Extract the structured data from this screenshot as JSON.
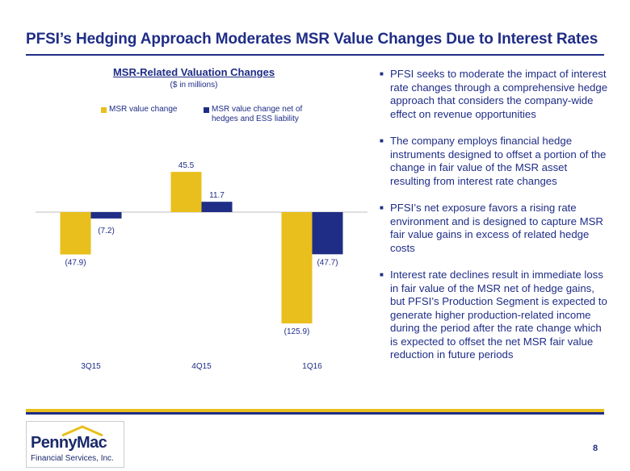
{
  "page": {
    "title": "PFSI’s Hedging Approach Moderates MSR Value Changes Due to Interest Rates",
    "page_number": "8"
  },
  "chart_data": {
    "type": "bar",
    "title": "MSR-Related Valuation Changes",
    "subtitle": "($ in millions)",
    "categories": [
      "3Q15",
      "4Q15",
      "1Q16"
    ],
    "series": [
      {
        "name": "MSR value change",
        "values": [
          -47.9,
          45.5,
          -125.9
        ],
        "labels": [
          "(47.9)",
          "45.5",
          "(125.9)"
        ],
        "color": "#e8bf1c"
      },
      {
        "name": "MSR value change net of hedges and ESS liability",
        "values": [
          -7.2,
          11.7,
          -47.7
        ],
        "labels": [
          "(7.2)",
          "11.7",
          "(47.7)"
        ],
        "color": "#1f2d86"
      }
    ],
    "legend_lines": [
      [
        "MSR value change"
      ],
      [
        "MSR value change net of",
        "hedges and ESS liability"
      ]
    ],
    "legend_position": "top",
    "ylim": [
      -130,
      50
    ],
    "grid": false
  },
  "bullets": [
    "PFSI seeks to moderate the impact of interest rate changes through a comprehensive hedge approach that considers the company-wide effect on revenue opportunities",
    "The company employs financial hedge instruments designed to offset a portion of the change in fair value of the MSR asset resulting from interest rate changes",
    "PFSI’s net exposure favors a rising rate environment and is designed to capture MSR fair value gains in excess of related hedge costs",
    "Interest rate declines result in immediate loss in fair value of the MSR net of hedge gains, but PFSI’s Production Segment is expected to generate higher production-related income during the period after the rate change which is expected to offset the net MSR fair value reduction in future periods"
  ],
  "logo": {
    "name": "PennyMac",
    "subtitle": "Financial Services, Inc."
  },
  "colors": {
    "brand_blue": "#1f2d86",
    "brand_yellow": "#e8bf1c"
  },
  "icons": {
    "bullet": "square-bullet-icon"
  }
}
